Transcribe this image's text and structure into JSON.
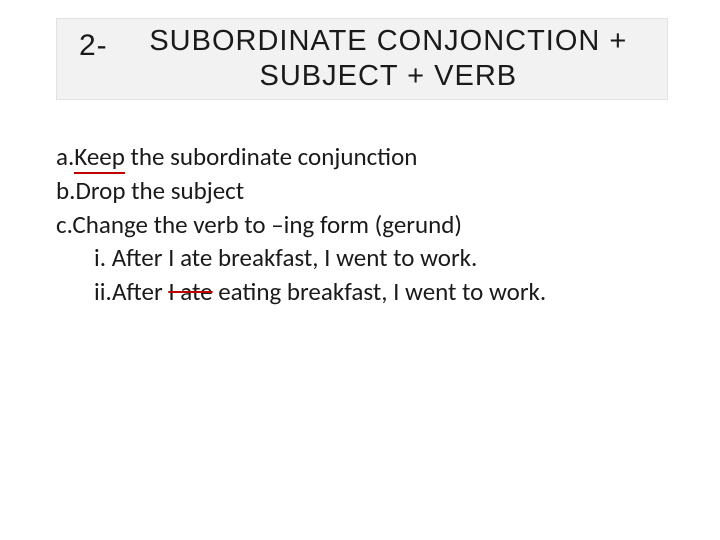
{
  "colors": {
    "background": "#ffffff",
    "title_box_bg": "#f2f2f2",
    "title_box_border": "#e2e2e2",
    "text": "#1a1a1a",
    "accent_red": "#c00000"
  },
  "typography": {
    "title_font": "Arial",
    "body_font": "Calibri",
    "title_fontsize": 29,
    "body_fontsize": 25,
    "title_letter_spacing": 1
  },
  "title": {
    "number": "2-",
    "line1": "SUBORDINATE CONJONCTION +",
    "line2": "SUBJECT + VERB"
  },
  "body": {
    "a": {
      "marker": "a.",
      "keep": "Keep",
      "rest": " the subordinate conjunction"
    },
    "b": {
      "marker": "b.",
      "text": "Drop the subject"
    },
    "c": {
      "marker": "c.",
      "text": "Change the verb to –ing form (gerund)"
    },
    "i": {
      "marker": "i.",
      "text": "After I ate breakfast, I went to work."
    },
    "ii": {
      "marker": "ii.",
      "before": "After ",
      "strike": "I ate",
      "after": " eating breakfast, I went to work."
    }
  }
}
